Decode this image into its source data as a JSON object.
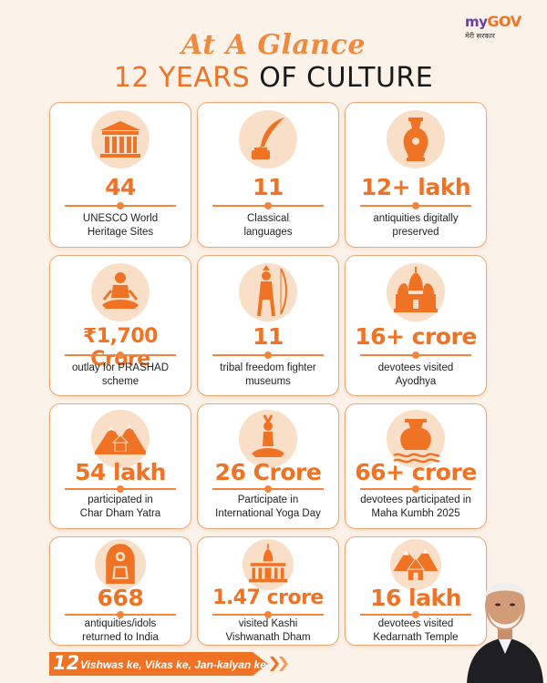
{
  "header": {
    "title_script": "At A Glance",
    "title_accent": "12 YEARS",
    "title_rest": "OF CULTURE"
  },
  "logo": {
    "my": "my",
    "gov": "GOV",
    "sub": "मेरी सरकार"
  },
  "cards": [
    {
      "icon": "monument-icon",
      "value": "44",
      "label_1": "UNESCO World",
      "label_2": "Heritage Sites"
    },
    {
      "icon": "quill-ink-icon",
      "value": "11",
      "label_1": "Classical",
      "label_2": "languages"
    },
    {
      "icon": "vase-icon",
      "value": "12+ lakh",
      "label_1": "antiquities digitally",
      "label_2": "preserved"
    },
    {
      "icon": "meditation-icon",
      "value": "₹1,700 Crore",
      "label_1": "outlay for PRASHAD",
      "label_2": "scheme"
    },
    {
      "icon": "tribal-warrior-icon",
      "value": "11",
      "label_1": "tribal freedom fighter",
      "label_2": "museums"
    },
    {
      "icon": "temple-icon",
      "value": "16+ crore",
      "label_1": "devotees visited",
      "label_2": "Ayodhya"
    },
    {
      "icon": "mountain-temple-icon",
      "value": "54 lakh",
      "label_1": "participated in",
      "label_2": "Char Dham Yatra"
    },
    {
      "icon": "yoga-icon",
      "value": "26 Crore",
      "label_1": "Participate in",
      "label_2": "International Yoga Day"
    },
    {
      "icon": "kalash-icon",
      "value": "66+ crore",
      "label_1": "devotees participated in",
      "label_2": "Maha Kumbh 2025"
    },
    {
      "icon": "idol-icon",
      "value": "668",
      "label_1": "antiquities/idols",
      "label_2": "returned to India"
    },
    {
      "icon": "kashi-temple-icon",
      "value": "1.47 crore",
      "label_1": "visited Kashi",
      "label_2": "Vishwanath Dham"
    },
    {
      "icon": "kedarnath-icon",
      "value": "16 lakh",
      "label_1": "devotees visited",
      "label_2": "Kedarnath Temple"
    }
  ],
  "footer": {
    "number": "12",
    "tagline": "Vishwas ke, Vikas ke, Jan-kalyan ke"
  },
  "colors": {
    "accent": "#f07325",
    "light": "#f9dfc7",
    "background": "#fbf3ea"
  }
}
